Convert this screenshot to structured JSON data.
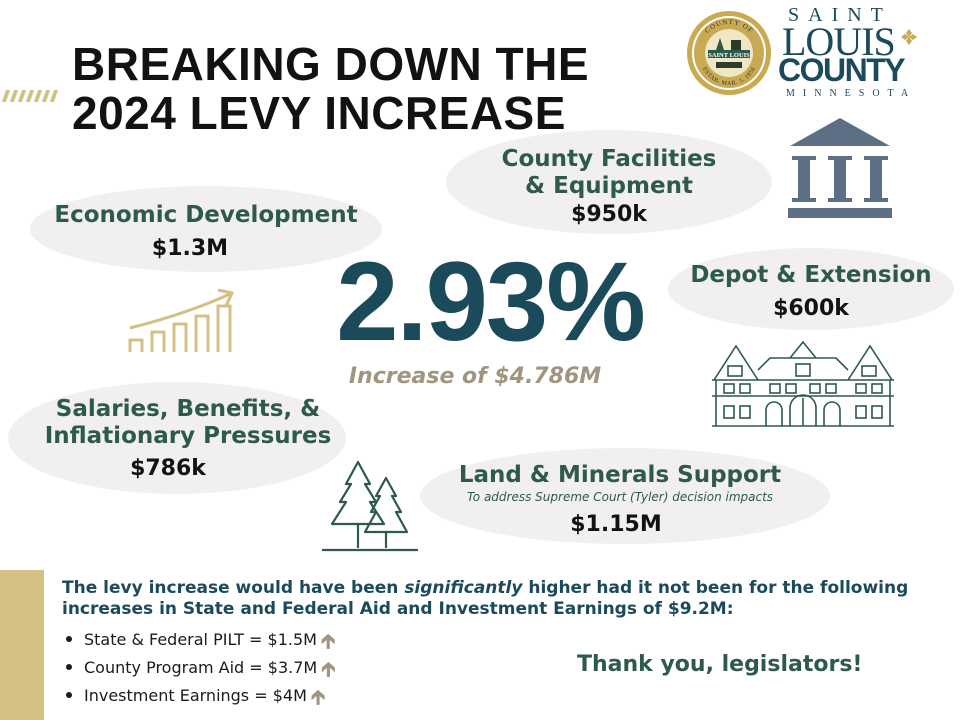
{
  "title": {
    "line1": "BREAKING DOWN THE",
    "line2": "2024 LEVY INCREASE"
  },
  "headline": {
    "percent": "2.93%",
    "subtitle": "Increase of $4.786M"
  },
  "categories": {
    "economic_development": {
      "label": "Economic Development",
      "amount": "$1.3M"
    },
    "county_facilities": {
      "label_line1": "County Facilities",
      "label_line2": "& Equipment",
      "amount": "$950k"
    },
    "depot_extension": {
      "label": "Depot & Extension",
      "amount": "$600k"
    },
    "salaries": {
      "label_line1": "Salaries, Benefits, &",
      "label_line2": "Inflationary Pressures",
      "amount": "$786k"
    },
    "land_minerals": {
      "label": "Land & Minerals Support",
      "sublabel": "To address Supreme Court (Tyler) decision impacts",
      "amount": "$1.15M"
    }
  },
  "note": {
    "before": "The levy increase would have been ",
    "emphasis": "significantly",
    "after": " higher had it not been for the following increases in State and Federal Aid and Investment Earnings of $9.2M:"
  },
  "bullets": [
    "State & Federal PILT = $1.5M",
    "County Program Aid = $3.7M",
    "Investment Earnings = $4M"
  ],
  "thanks": "Thank you, legislators!",
  "logo": {
    "seal_top": "COUNTY OF",
    "seal_center": "SAINT LOUIS",
    "seal_bottom": "ESTAB. MAR. 1, 1856",
    "word_saint": "SAINT",
    "word_louis": "LOUIS",
    "word_county": "COUNTY",
    "word_state": "MINNESOTA"
  },
  "icons": {
    "bar_chart": "bar-chart-up-icon",
    "building": "columns-building-icon",
    "depot": "depot-building-icon",
    "trees": "pine-trees-icon",
    "arrow": "arrow-up-icon"
  },
  "colors": {
    "dark_teal": "#1b4a5a",
    "green": "#2d5a4a",
    "gold": "#d4bf85",
    "taupe": "#a09580",
    "slate": "#5c6f85",
    "ellipse": "#f1f0ee"
  }
}
